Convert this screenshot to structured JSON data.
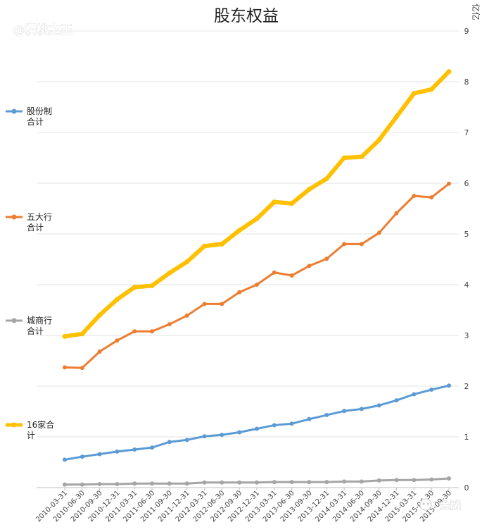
{
  "watermarks": {
    "top_left": "@樱桃之王",
    "bottom_right": "金融"
  },
  "chart_data": {
    "type": "line",
    "title": "股东权益",
    "unit": "亿亿",
    "xlabel": "",
    "ylabel": "",
    "ylim": [
      0,
      9
    ],
    "yticks": [
      0,
      1,
      2,
      3,
      4,
      5,
      6,
      7,
      8,
      9
    ],
    "y_axis_position": "right",
    "grid": true,
    "legend_position": "left",
    "categories": [
      "2010-03-31",
      "2010-06-30",
      "2010-09-30",
      "2010-12-31",
      "2011-03-31",
      "2011-06-30",
      "2011-09-30",
      "2011-12-31",
      "2012-03-31",
      "2012-06-30",
      "2012-09-30",
      "2012-12-31",
      "2013-03-31",
      "2013-06-30",
      "2013-09-30",
      "2013-12-31",
      "2014-03-31",
      "2014-06-30",
      "2014-09-30",
      "2014-12-31",
      "2015-03-31",
      "2015-06-30",
      "2015-09-30"
    ],
    "series": [
      {
        "name": "股份制合计",
        "legend_lines": [
          "股份制",
          "合计"
        ],
        "color": "#5b9bd5",
        "width": 3,
        "values": [
          0.55,
          0.61,
          0.66,
          0.71,
          0.75,
          0.79,
          0.9,
          0.94,
          1.01,
          1.04,
          1.09,
          1.16,
          1.23,
          1.26,
          1.35,
          1.43,
          1.51,
          1.55,
          1.62,
          1.72,
          1.84,
          1.93,
          2.01
        ]
      },
      {
        "name": "五大行合计",
        "legend_lines": [
          "五大行",
          "合计"
        ],
        "color": "#ed7d31",
        "width": 3,
        "values": [
          2.37,
          2.36,
          2.68,
          2.9,
          3.08,
          3.08,
          3.22,
          3.39,
          3.62,
          3.62,
          3.85,
          4.0,
          4.24,
          4.18,
          4.37,
          4.51,
          4.8,
          4.8,
          5.02,
          5.41,
          5.75,
          5.72,
          5.99
        ]
      },
      {
        "name": "城商行合计",
        "legend_lines": [
          "城商行",
          "合计"
        ],
        "color": "#a5a5a5",
        "width": 3,
        "values": [
          0.06,
          0.06,
          0.07,
          0.07,
          0.08,
          0.08,
          0.08,
          0.08,
          0.1,
          0.1,
          0.1,
          0.1,
          0.11,
          0.11,
          0.11,
          0.11,
          0.12,
          0.12,
          0.14,
          0.15,
          0.15,
          0.16,
          0.18
        ]
      },
      {
        "name": "16家合计",
        "legend_lines": [
          "16家合",
          "计"
        ],
        "color": "#ffc000",
        "width": 6,
        "values": [
          2.98,
          3.03,
          3.4,
          3.71,
          3.95,
          3.98,
          4.23,
          4.45,
          4.76,
          4.8,
          5.07,
          5.3,
          5.63,
          5.6,
          5.88,
          6.09,
          6.5,
          6.52,
          6.85,
          7.31,
          7.77,
          7.85,
          8.2
        ]
      }
    ]
  }
}
